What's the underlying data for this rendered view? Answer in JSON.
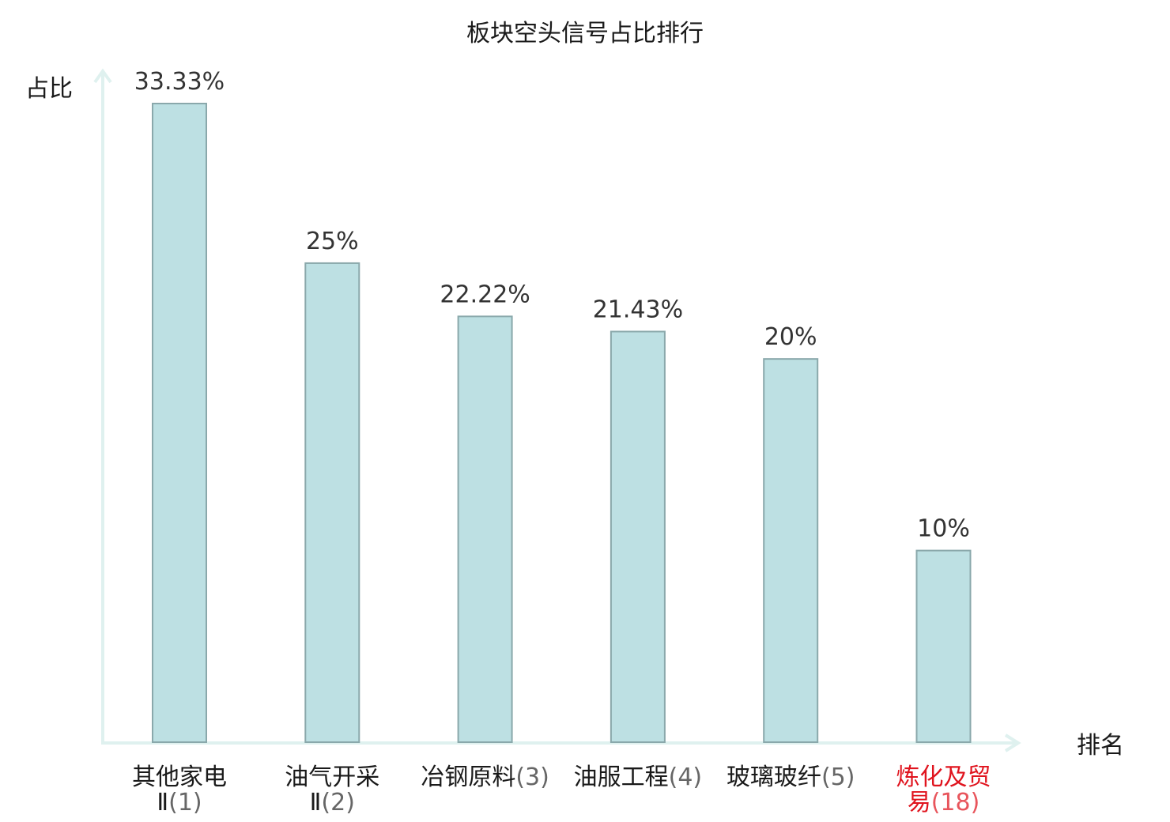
{
  "chart_data": {
    "type": "bar",
    "title": "板块空头信号占比排行",
    "ylabel": "占比",
    "xlabel": "排名",
    "categories": [
      {
        "name": "其他家电",
        "suffix": "Ⅱ",
        "rank": "(1)",
        "highlight": false
      },
      {
        "name": "油气开采",
        "suffix": "Ⅱ",
        "rank": "(2)",
        "highlight": false
      },
      {
        "name": "冶钢原料",
        "suffix": "",
        "rank": "(3)",
        "highlight": false
      },
      {
        "name": "油服工程",
        "suffix": "",
        "rank": "(4)",
        "highlight": false
      },
      {
        "name": "玻璃玻纤",
        "suffix": "",
        "rank": "(5)",
        "highlight": false
      },
      {
        "name": "炼化及贸易",
        "suffix": "",
        "rank": "(18)",
        "highlight": true
      }
    ],
    "values": [
      33.33,
      25,
      22.22,
      21.43,
      20,
      10
    ],
    "value_labels": [
      "33.33%",
      "25%",
      "22.22%",
      "21.43%",
      "20%",
      "10%"
    ],
    "unit": "%",
    "ylim": [
      0,
      33.33
    ],
    "grid": false,
    "legend": "none"
  },
  "colors": {
    "bar_fill": "#bde0e3",
    "bar_stroke": "#8aa8ab",
    "axis": "#dff1ef",
    "text": "#1a1a1a",
    "value_text": "#333333",
    "rank_text": "#666666",
    "highlight": "#e0141e",
    "highlight_soft": "#e8555c"
  }
}
